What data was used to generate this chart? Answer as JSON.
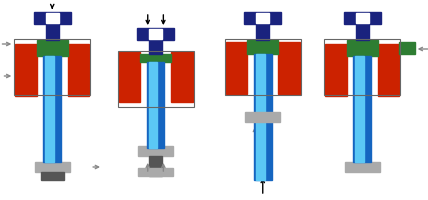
{
  "background": "#ffffff",
  "colors": {
    "dark_blue": "#1a237e",
    "red": "#cc2200",
    "green": "#2e7d32",
    "light_blue": "#5bc8f5",
    "blue_mid": "#1565c0",
    "blue_gradient": "#2979ff",
    "gray": "#888888",
    "dark_gray": "#555555",
    "light_gray": "#aaaaaa",
    "white": "#ffffff",
    "black": "#000000",
    "outline": "#666666"
  },
  "figsize": [
    4.28,
    2.0
  ],
  "dpi": 100
}
